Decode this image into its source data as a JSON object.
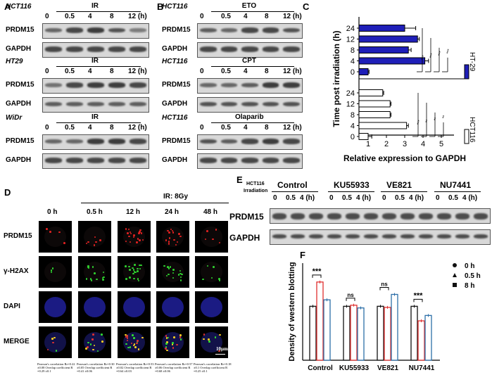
{
  "panels": {
    "A": "A",
    "B": "B",
    "C": "C",
    "D": "D",
    "E": "E",
    "F": "F"
  },
  "panelA": {
    "groups": [
      {
        "cell": "HCT116",
        "treatment": "IR"
      },
      {
        "cell": "HT29",
        "treatment": "IR"
      },
      {
        "cell": "WiDr",
        "treatment": "IR"
      }
    ],
    "timepoints": [
      "0",
      "0.5",
      "4",
      "8",
      "12 (h)"
    ],
    "rows": [
      "PRDM15",
      "GAPDH"
    ]
  },
  "panelB": {
    "groups": [
      {
        "cell": "HCT116",
        "treatment": "ETO"
      },
      {
        "cell": "HCT116",
        "treatment": "CPT"
      },
      {
        "cell": "HCT116",
        "treatment": "Olaparib"
      }
    ],
    "timepoints": [
      "0",
      "0.5",
      "4",
      "8",
      "12 (h)"
    ],
    "rows": [
      "PRDM15",
      "GAPDH"
    ]
  },
  "chart_data": [
    {
      "type": "bar",
      "orientation": "horizontal",
      "ylabel": "Time post irradiation (h)",
      "xlabel": "Relative expression to GAPDH",
      "xticks": [
        "1",
        "2",
        "3",
        "4",
        "5"
      ],
      "xlim": [
        0.5,
        5.5
      ],
      "categories": [
        "24",
        "12",
        "8",
        "4",
        "0"
      ],
      "series": [
        {
          "name": "HT-29",
          "color": "#1f1fb8",
          "values": [
            3.0,
            3.7,
            3.2,
            4.1,
            1.0
          ],
          "errors": [
            0.6,
            0.1,
            0.15,
            0.2,
            0.05
          ]
        },
        {
          "name": "HCT116",
          "color": "#ffffff",
          "values": [
            1.8,
            2.2,
            2.2,
            3.1,
            1.0
          ],
          "errors": [
            0.05,
            0.05,
            0.05,
            0.1,
            0.2
          ]
        }
      ],
      "significance": [
        [
          "***",
          "***",
          "***",
          "***"
        ],
        [
          "***",
          "**",
          "**",
          "**"
        ]
      ]
    },
    {
      "type": "bar",
      "ylabel": "Density of western blotting",
      "categories": [
        "Control",
        "KU55933",
        "VE821",
        "NU7441"
      ],
      "ylim": [
        0,
        1.8
      ],
      "series": [
        {
          "name": "0 h",
          "color": "#111111",
          "values": [
            1.0,
            1.0,
            1.0,
            1.0
          ]
        },
        {
          "name": "0.5 h",
          "color": "#e03030",
          "values": [
            1.45,
            1.02,
            0.98,
            0.73
          ]
        },
        {
          "name": "8 h",
          "color": "#2d6fa8",
          "values": [
            1.12,
            0.97,
            1.22,
            0.83
          ]
        }
      ],
      "significance": [
        "***",
        "ns",
        "ns",
        "***"
      ]
    }
  ],
  "panelD": {
    "header": "IR: 8Gy",
    "columns": [
      "0 h",
      "0.5 h",
      "12 h",
      "24 h",
      "48 h"
    ],
    "rows": [
      "PRDM15",
      "γ-H2AX",
      "DAPI",
      "MERGE"
    ],
    "scalebar": "10μm",
    "stats": [
      "Pearson's correlation Rr=0.22 ±0.08 Overlap coefficient R =0.29 ±0.1",
      "Pearson's correlation Rr=0.30 ±0.05 Overlap coefficient R =0.41 ±0.06",
      "Pearson's correlation Rr=0.53 ±0.02 Overlap coefficient R =0.64 ±0.03",
      "Pearson's correlation Rr=0.57 ±0.06 Overlap coefficient R =0.68 ±0.06",
      "Pearson's correlation Rr=0.18 ±0.1 Overlap coefficient R =0.25 ±0.1"
    ]
  },
  "panelE": {
    "cell": "HCT116",
    "treatment": "Irradiation",
    "groups": [
      "Control",
      "KU55933",
      "VE821",
      "NU7441"
    ],
    "timepoints": [
      "0",
      "0.5",
      "4 (h)"
    ],
    "rows": [
      "PRDM15",
      "GAPDH"
    ]
  }
}
